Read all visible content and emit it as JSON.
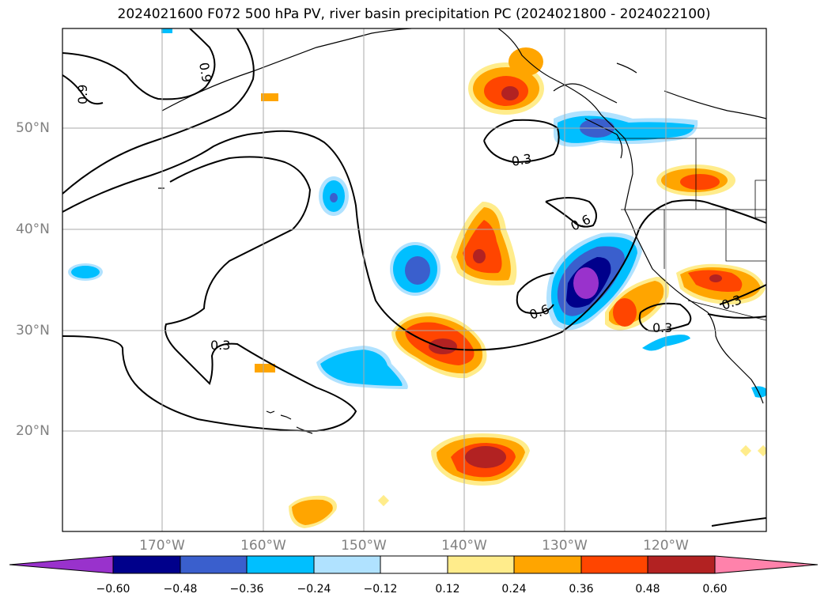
{
  "title": "2024021600 F072 500 hPa PV, river basin precipitation PC (2024021800 - 2024022100)",
  "lat_labels": [
    "50°N",
    "40°N",
    "30°N",
    "20°N"
  ],
  "lon_labels": [
    "170°W",
    "160°W",
    "150°W",
    "140°W",
    "130°W",
    "120°W"
  ],
  "contour_labels": [
    "0.9",
    "0.9",
    "0.3",
    "0.6",
    "0.6",
    "0.3",
    "0.3",
    "0.3"
  ],
  "colorbar": {
    "ticks": [
      "−0.60",
      "−0.48",
      "−0.36",
      "−0.24",
      "−0.12",
      "0.12",
      "0.24",
      "0.36",
      "0.48",
      "0.60"
    ],
    "colors": [
      "#9932cc",
      "#00008b",
      "#3a5fcd",
      "#00bfff",
      "#b0e2ff",
      "#ffffff",
      "#ffec8b",
      "#ffa500",
      "#ff4500",
      "#b22222",
      "#ff82ab"
    ]
  }
}
